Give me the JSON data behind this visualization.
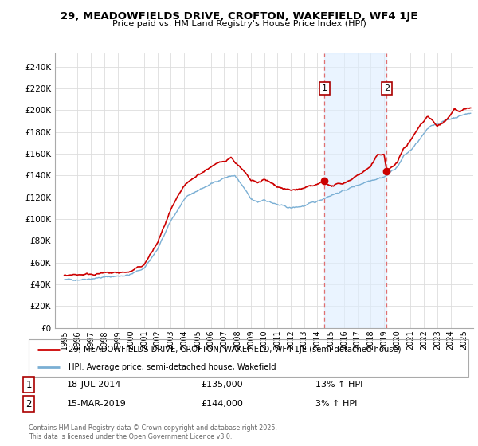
{
  "title": "29, MEADOWFIELDS DRIVE, CROFTON, WAKEFIELD, WF4 1JE",
  "subtitle": "Price paid vs. HM Land Registry's House Price Index (HPI)",
  "yticks": [
    0,
    20000,
    40000,
    60000,
    80000,
    100000,
    120000,
    140000,
    160000,
    180000,
    200000,
    220000,
    240000
  ],
  "ytick_labels": [
    "£0",
    "£20K",
    "£40K",
    "£60K",
    "£80K",
    "£100K",
    "£120K",
    "£140K",
    "£160K",
    "£180K",
    "£200K",
    "£220K",
    "£240K"
  ],
  "ylim": [
    0,
    252000
  ],
  "xlim_left": 1994.3,
  "xlim_right": 2025.7,
  "sale1_date": 2014.54,
  "sale1_price": 135000,
  "sale1_label": "1",
  "sale2_date": 2019.21,
  "sale2_price": 144000,
  "sale2_label": "2",
  "legend_property": "29, MEADOWFIELDS DRIVE, CROFTON, WAKEFIELD, WF4 1JE (semi-detached house)",
  "legend_hpi": "HPI: Average price, semi-detached house, Wakefield",
  "table_row1": [
    "1",
    "18-JUL-2014",
    "£135,000",
    "13% ↑ HPI"
  ],
  "table_row2": [
    "2",
    "15-MAR-2019",
    "£144,000",
    "3% ↑ HPI"
  ],
  "footer": "Contains HM Land Registry data © Crown copyright and database right 2025.\nThis data is licensed under the Open Government Licence v3.0.",
  "property_line_color": "#cc0000",
  "hpi_line_color": "#7aafd4",
  "hpi_fill_color": "#ddeeff",
  "sale_marker_color": "#cc0000",
  "vline_color": "#e07070",
  "grid_color": "#dddddd",
  "bg_color": "#f8f9ff"
}
